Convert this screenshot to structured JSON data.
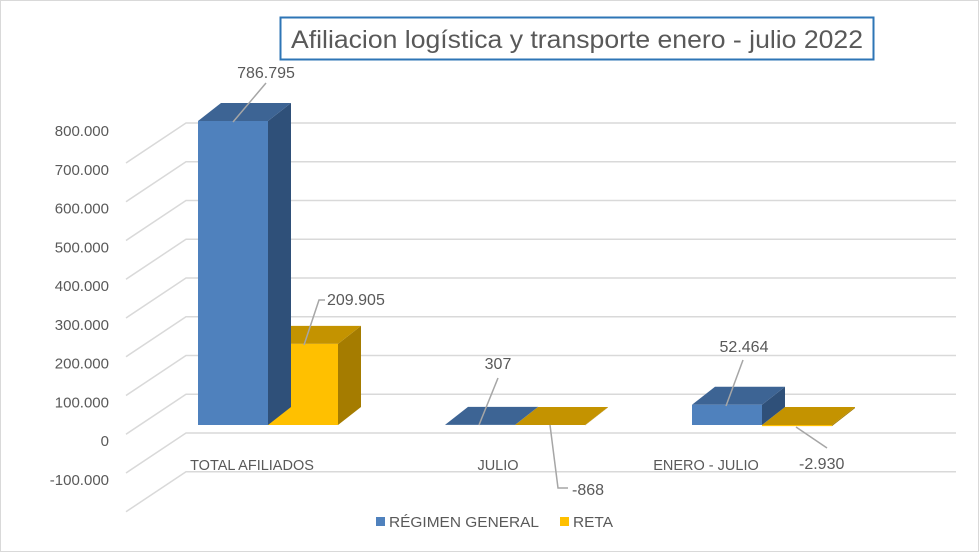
{
  "chart_data": {
    "type": "bar",
    "subtype": "3d-clustered-column",
    "title": "Afiliacion logística y transporte enero - julio 2022",
    "categories": [
      "TOTAL AFILIADOS",
      "JULIO",
      "ENERO - JULIO"
    ],
    "series": [
      {
        "name": "RÉGIMEN GENERAL",
        "values": [
          786795,
          307,
          52464
        ],
        "labels": [
          "786.795",
          "307",
          "52.464"
        ],
        "color": "#4f81bd"
      },
      {
        "name": "RETA",
        "values": [
          209905,
          -868,
          -2930
        ],
        "labels": [
          "209.905",
          "-868",
          "-2.930"
        ],
        "color": "#ffc000"
      }
    ],
    "yticks": [
      -100000,
      0,
      100000,
      200000,
      300000,
      400000,
      500000,
      600000,
      700000,
      800000
    ],
    "ytick_labels": [
      "-100.000",
      "0",
      "100.000",
      "200.000",
      "300.000",
      "400.000",
      "500.000",
      "600.000",
      "700.000",
      "800.000"
    ],
    "ylim": [
      -100000,
      900000
    ],
    "xlabel": "",
    "ylabel": "",
    "grid": true,
    "legend_position": "bottom"
  }
}
